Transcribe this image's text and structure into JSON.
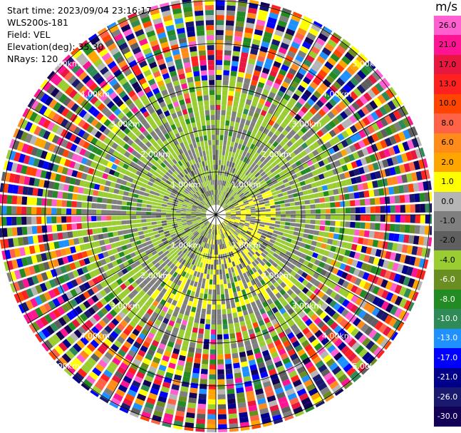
{
  "info": {
    "start_time": "Start time: 2023/09/04 23:16:17",
    "instrument": "WLS200s-181",
    "field": "Field: VEL",
    "elevation": "Elevation(deg): 35.30",
    "nrays": "NRays: 120"
  },
  "chart_data": {
    "type": "heatmap",
    "subtype": "polar PPI scan",
    "field": "VEL",
    "nrays": 120,
    "range_rings": [
      {
        "label": "1.00km"
      },
      {
        "label": "2.00km"
      },
      {
        "label": "3.00km"
      },
      {
        "label": "4.00km"
      },
      {
        "label": "5.00km"
      }
    ],
    "colorbar": {
      "unit": "m/s",
      "ticks": [
        "26.0",
        "21.0",
        "17.0",
        "13.0",
        "10.0",
        "8.0",
        "6.0",
        "2.0",
        "1.0",
        "0.0",
        "-1.0",
        "-2.0",
        "-4.0",
        "-6.0",
        "-8.0",
        "-10.0",
        "-13.0",
        "-17.0",
        "-21.0",
        "-26.0",
        "-30.0"
      ],
      "colors": [
        "#ff5fd0",
        "#ff1493",
        "#e8173f",
        "#ff2020",
        "#ff4500",
        "#ff6347",
        "#ff8c1a",
        "#ffa500",
        "#ffff00",
        "#b5b5b5",
        "#7f7f7f",
        "#5f5f5f",
        "#9acd32",
        "#6b8e23",
        "#228b22",
        "#2e8b57",
        "#1e90ff",
        "#0000ff",
        "#00008b",
        "#191970",
        "#120056"
      ]
    }
  }
}
